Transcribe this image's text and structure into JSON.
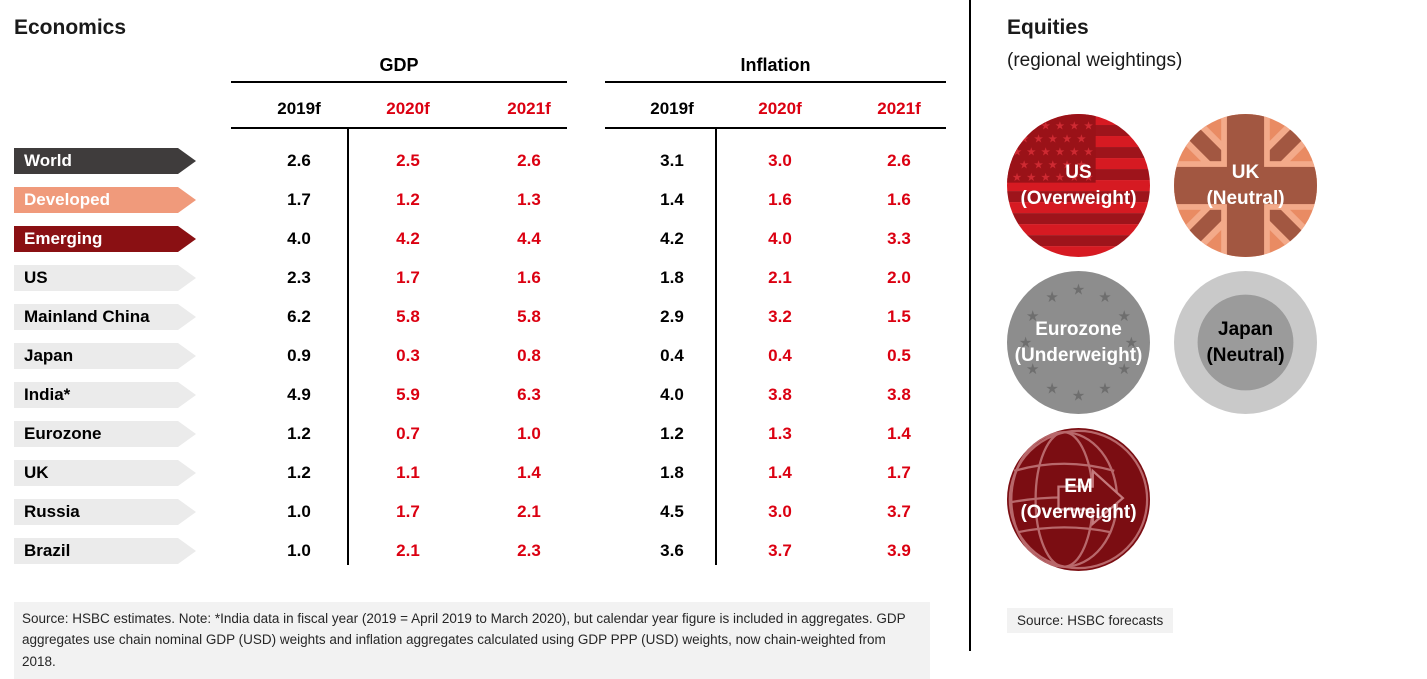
{
  "economics": {
    "title": "Economics",
    "groups": [
      {
        "label": "GDP"
      },
      {
        "label": "Inflation"
      }
    ],
    "year_headers": [
      "2019f",
      "2020f",
      "2021f"
    ],
    "year_header_colors": [
      "#000000",
      "#DB0011",
      "#DB0011"
    ],
    "forecast_color": "#DB0011",
    "actual_color": "#000000",
    "rows": [
      {
        "label": "World",
        "band_color": "#3F3C3C",
        "label_color": "#FFFFFF",
        "gdp": [
          "2.6",
          "2.5",
          "2.6"
        ],
        "inflation": [
          "3.1",
          "3.0",
          "2.6"
        ]
      },
      {
        "label": "Developed",
        "band_color": "#F09A7B",
        "label_color": "#FFFFFF",
        "gdp": [
          "1.7",
          "1.2",
          "1.3"
        ],
        "inflation": [
          "1.4",
          "1.6",
          "1.6"
        ]
      },
      {
        "label": "Emerging",
        "band_color": "#8A1013",
        "label_color": "#FFFFFF",
        "gdp": [
          "4.0",
          "4.2",
          "4.4"
        ],
        "inflation": [
          "4.2",
          "4.0",
          "3.3"
        ]
      },
      {
        "label": "US",
        "band_color": "#EBEBEB",
        "label_color": "#000000",
        "gdp": [
          "2.3",
          "1.7",
          "1.6"
        ],
        "inflation": [
          "1.8",
          "2.1",
          "2.0"
        ]
      },
      {
        "label": "Mainland China",
        "band_color": "#EBEBEB",
        "label_color": "#000000",
        "gdp": [
          "6.2",
          "5.8",
          "5.8"
        ],
        "inflation": [
          "2.9",
          "3.2",
          "1.5"
        ]
      },
      {
        "label": "Japan",
        "band_color": "#EBEBEB",
        "label_color": "#000000",
        "gdp": [
          "0.9",
          "0.3",
          "0.8"
        ],
        "inflation": [
          "0.4",
          "0.4",
          "0.5"
        ]
      },
      {
        "label": "India*",
        "band_color": "#EBEBEB",
        "label_color": "#000000",
        "gdp": [
          "4.9",
          "5.9",
          "6.3"
        ],
        "inflation": [
          "4.0",
          "3.8",
          "3.8"
        ]
      },
      {
        "label": "Eurozone",
        "band_color": "#EBEBEB",
        "label_color": "#000000",
        "gdp": [
          "1.2",
          "0.7",
          "1.0"
        ],
        "inflation": [
          "1.2",
          "1.3",
          "1.4"
        ]
      },
      {
        "label": "UK",
        "band_color": "#EBEBEB",
        "label_color": "#000000",
        "gdp": [
          "1.2",
          "1.1",
          "1.4"
        ],
        "inflation": [
          "1.8",
          "1.4",
          "1.7"
        ]
      },
      {
        "label": "Russia",
        "band_color": "#EBEBEB",
        "label_color": "#000000",
        "gdp": [
          "1.0",
          "1.7",
          "2.1"
        ],
        "inflation": [
          "4.5",
          "3.0",
          "3.7"
        ]
      },
      {
        "label": "Brazil",
        "band_color": "#EBEBEB",
        "label_color": "#000000",
        "gdp": [
          "1.0",
          "2.1",
          "2.3"
        ],
        "inflation": [
          "3.6",
          "3.7",
          "3.9"
        ]
      }
    ],
    "source_note": "Source: HSBC estimates. Note: *India data in fiscal year (2019 = April 2019 to March 2020), but calendar year figure is included in aggregates. GDP aggregates use chain nominal GDP (USD) weights and inflation aggregates calculated using GDP PPP (USD) weights, now chain-weighted from 2018."
  },
  "equities": {
    "title": "Equities",
    "subtitle": "(regional weightings)",
    "items": [
      {
        "region": "US",
        "weighting": "(Overweight)",
        "flag": "us-flag",
        "text_color": "#FFFFFF"
      },
      {
        "region": "UK",
        "weighting": "(Neutral)",
        "flag": "uk-flag",
        "text_color": "#FFFFFF"
      },
      {
        "region": "Eurozone",
        "weighting": "(Underweight)",
        "flag": "eurozone-flag",
        "text_color": "#FFFFFF"
      },
      {
        "region": "Japan",
        "weighting": "(Neutral)",
        "flag": "japan-flag",
        "text_color": "#000000"
      },
      {
        "region": "EM",
        "weighting": "(Overweight)",
        "flag": "em-globe",
        "text_color": "#FFFFFF"
      }
    ],
    "source_note": "Source: HSBC forecasts"
  },
  "colors": {
    "accent_red": "#DB0011",
    "world_band": "#3F3C3C",
    "developed_band": "#F09A7B",
    "emerging_band": "#8A1013",
    "neutral_band": "#EBEBEB",
    "note_background": "#F2F2F2",
    "divider": "#000000"
  }
}
